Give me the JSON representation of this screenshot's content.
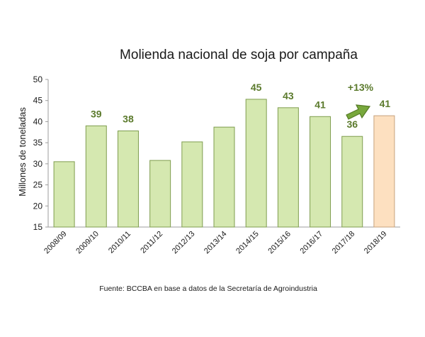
{
  "chart_data": {
    "type": "bar",
    "title": "Molienda nacional de soja por campaña",
    "ylabel": "Millones de toneladas",
    "xlabel": "",
    "ylim": [
      15,
      50
    ],
    "yticks": [
      15,
      20,
      25,
      30,
      35,
      40,
      45,
      50
    ],
    "categories": [
      "2008/09",
      "2009/10",
      "2010/11",
      "2011/12",
      "2012/13",
      "2013/14",
      "2014/15",
      "2015/16",
      "2016/17",
      "2017/18",
      "2018/19"
    ],
    "values": [
      30.5,
      39,
      37.8,
      30.8,
      35.2,
      38.7,
      45.3,
      43.3,
      41.2,
      36.5,
      41.4
    ],
    "data_labels": [
      "",
      "39",
      "38",
      "",
      "",
      "",
      "45",
      "43",
      "41",
      "36",
      "41"
    ],
    "annotation": "+13%",
    "source": "Fuente: BCCBA en base a datos de la Secretaría de Agroindustria",
    "colors": {
      "bar_fill": "#d5e8b0",
      "bar_stroke": "#7f9d4f",
      "highlight_fill": "#fde0c0",
      "highlight_stroke": "#c6a37e",
      "label_color": "#5b7a2c",
      "arrow_fill": "#78a83c",
      "arrow_stroke": "#557a26",
      "axis_color": "#9c9c9c"
    },
    "highlight_index": 10,
    "grid": false
  }
}
